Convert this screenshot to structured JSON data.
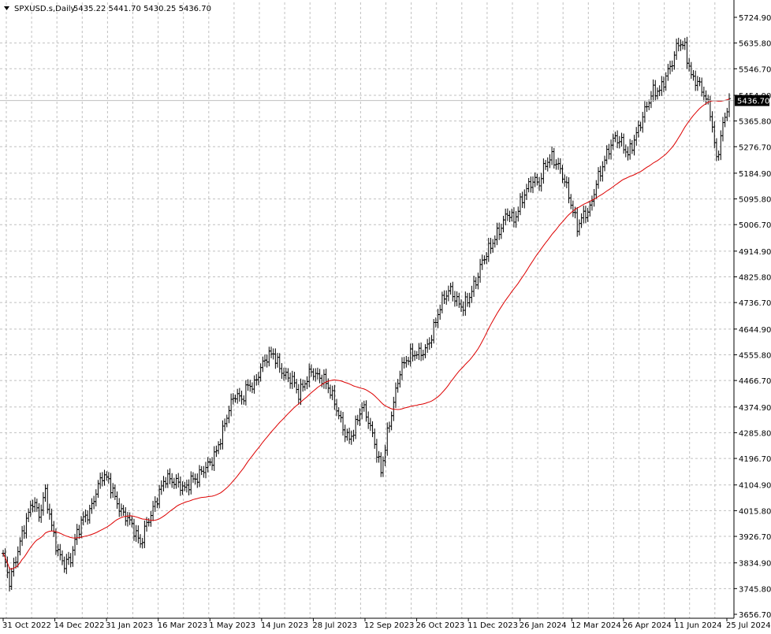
{
  "header": {
    "symbol": "SPXUSD.s,Daily",
    "ohlc": "5435.22 5441.70 5430.25 5436.70"
  },
  "current_price_label": "5436.70",
  "colors": {
    "background": "#ffffff",
    "grid": "#c0c0c0",
    "bars": "#000000",
    "moving_average": "#dd0000",
    "price_line": "#c0c0c0",
    "price_tag_bg": "#000000"
  },
  "chart_data": {
    "type": "line",
    "series_style": "ohlc-bars",
    "title": "SPXUSD.s,Daily",
    "xlabel": "",
    "ylabel": "",
    "ylim": [
      3656.7,
      5768.0
    ],
    "grid": true,
    "y_ticks": [
      "5724.90",
      "5635.80",
      "5546.70",
      "5454.90",
      "5365.80",
      "5276.70",
      "5184.90",
      "5095.80",
      "5006.70",
      "4914.90",
      "4825.80",
      "4736.70",
      "4644.90",
      "4555.80",
      "4466.70",
      "4374.90",
      "4285.80",
      "4196.70",
      "4104.90",
      "4015.80",
      "3926.70",
      "3834.90",
      "3745.80",
      "3656.70"
    ],
    "x_ticks": [
      "31 Oct 2022",
      "14 Dec 2022",
      "31 Jan 2023",
      "16 Mar 2023",
      "1 May 2023",
      "14 Jun 2023",
      "28 Jul 2023",
      "12 Sep 2023",
      "26 Oct 2023",
      "11 Dec 2023",
      "26 Jan 2024",
      "12 Mar 2024",
      "26 Apr 2024",
      "11 Jun 2024",
      "25 Jul 2024"
    ],
    "price_anchors": [
      [
        0,
        3860
      ],
      [
        3,
        3770
      ],
      [
        6,
        3850
      ],
      [
        10,
        3960
      ],
      [
        14,
        4050
      ],
      [
        17,
        4000
      ],
      [
        20,
        4080
      ],
      [
        23,
        3960
      ],
      [
        26,
        3870
      ],
      [
        29,
        3830
      ],
      [
        32,
        3850
      ],
      [
        35,
        3940
      ],
      [
        38,
        3990
      ],
      [
        41,
        4010
      ],
      [
        44,
        4080
      ],
      [
        47,
        4140
      ],
      [
        50,
        4120
      ],
      [
        53,
        4060
      ],
      [
        56,
        4010
      ],
      [
        59,
        3990
      ],
      [
        62,
        3950
      ],
      [
        65,
        3900
      ],
      [
        68,
        3970
      ],
      [
        71,
        4020
      ],
      [
        74,
        4080
      ],
      [
        77,
        4130
      ],
      [
        80,
        4120
      ],
      [
        83,
        4110
      ],
      [
        86,
        4090
      ],
      [
        89,
        4120
      ],
      [
        92,
        4130
      ],
      [
        95,
        4160
      ],
      [
        98,
        4180
      ],
      [
        101,
        4220
      ],
      [
        104,
        4290
      ],
      [
        107,
        4370
      ],
      [
        110,
        4420
      ],
      [
        113,
        4400
      ],
      [
        116,
        4450
      ],
      [
        119,
        4450
      ],
      [
        122,
        4510
      ],
      [
        125,
        4550
      ],
      [
        128,
        4560
      ],
      [
        131,
        4510
      ],
      [
        134,
        4480
      ],
      [
        137,
        4470
      ],
      [
        140,
        4420
      ],
      [
        143,
        4460
      ],
      [
        146,
        4500
      ],
      [
        149,
        4480
      ],
      [
        152,
        4470
      ],
      [
        155,
        4430
      ],
      [
        158,
        4370
      ],
      [
        161,
        4300
      ],
      [
        164,
        4260
      ],
      [
        167,
        4310
      ],
      [
        170,
        4380
      ],
      [
        173,
        4330
      ],
      [
        176,
        4250
      ],
      [
        179,
        4150
      ],
      [
        182,
        4280
      ],
      [
        185,
        4390
      ],
      [
        188,
        4500
      ],
      [
        191,
        4540
      ],
      [
        194,
        4560
      ],
      [
        197,
        4560
      ],
      [
        200,
        4570
      ],
      [
        203,
        4620
      ],
      [
        206,
        4700
      ],
      [
        209,
        4760
      ],
      [
        212,
        4780
      ],
      [
        215,
        4740
      ],
      [
        218,
        4720
      ],
      [
        221,
        4760
      ],
      [
        224,
        4810
      ],
      [
        227,
        4880
      ],
      [
        230,
        4920
      ],
      [
        233,
        4960
      ],
      [
        236,
        5000
      ],
      [
        239,
        5050
      ],
      [
        242,
        5020
      ],
      [
        245,
        5080
      ],
      [
        248,
        5130
      ],
      [
        251,
        5160
      ],
      [
        254,
        5150
      ],
      [
        257,
        5220
      ],
      [
        260,
        5240
      ],
      [
        263,
        5210
      ],
      [
        266,
        5160
      ],
      [
        269,
        5080
      ],
      [
        272,
        5000
      ],
      [
        275,
        5040
      ],
      [
        278,
        5060
      ],
      [
        281,
        5150
      ],
      [
        284,
        5210
      ],
      [
        287,
        5270
      ],
      [
        290,
        5310
      ],
      [
        293,
        5290
      ],
      [
        296,
        5250
      ],
      [
        299,
        5300
      ],
      [
        302,
        5360
      ],
      [
        305,
        5420
      ],
      [
        308,
        5470
      ],
      [
        311,
        5470
      ],
      [
        314,
        5520
      ],
      [
        317,
        5570
      ],
      [
        320,
        5640
      ],
      [
        323,
        5620
      ],
      [
        326,
        5520
      ],
      [
        329,
        5500
      ],
      [
        332,
        5460
      ],
      [
        335,
        5400
      ],
      [
        338,
        5230
      ],
      [
        341,
        5350
      ],
      [
        344,
        5440
      ]
    ],
    "moving_average": {
      "name": "",
      "period": 50
    }
  }
}
